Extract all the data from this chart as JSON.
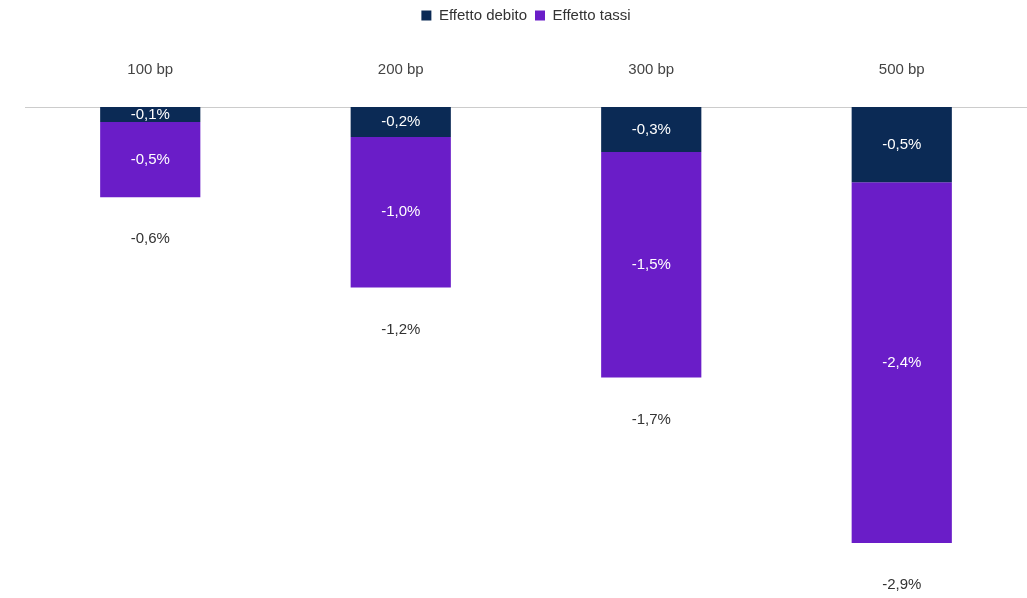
{
  "chart_data": {
    "type": "bar",
    "stacked": true,
    "legend": "top",
    "categories": [
      "100 bp",
      "200 bp",
      "300 bp",
      "500 bp"
    ],
    "series": [
      {
        "name": "Effetto debito",
        "color": "#0b2a55",
        "values": [
          -0.1,
          -0.2,
          -0.3,
          -0.5
        ],
        "value_labels": [
          "-0,1%",
          "-0,2%",
          "-0,3%",
          "-0,5%"
        ]
      },
      {
        "name": "Effetto tassi",
        "color": "#6a1dc8",
        "values": [
          -0.5,
          -1.0,
          -1.5,
          -2.4
        ],
        "value_labels": [
          "-0,5%",
          "-1,0%",
          "-1,5%",
          "-2,4%"
        ]
      }
    ],
    "totals": [
      "-0,6%",
      "-1,2%",
      "-1,7%",
      "-2,9%"
    ],
    "grid": false
  }
}
